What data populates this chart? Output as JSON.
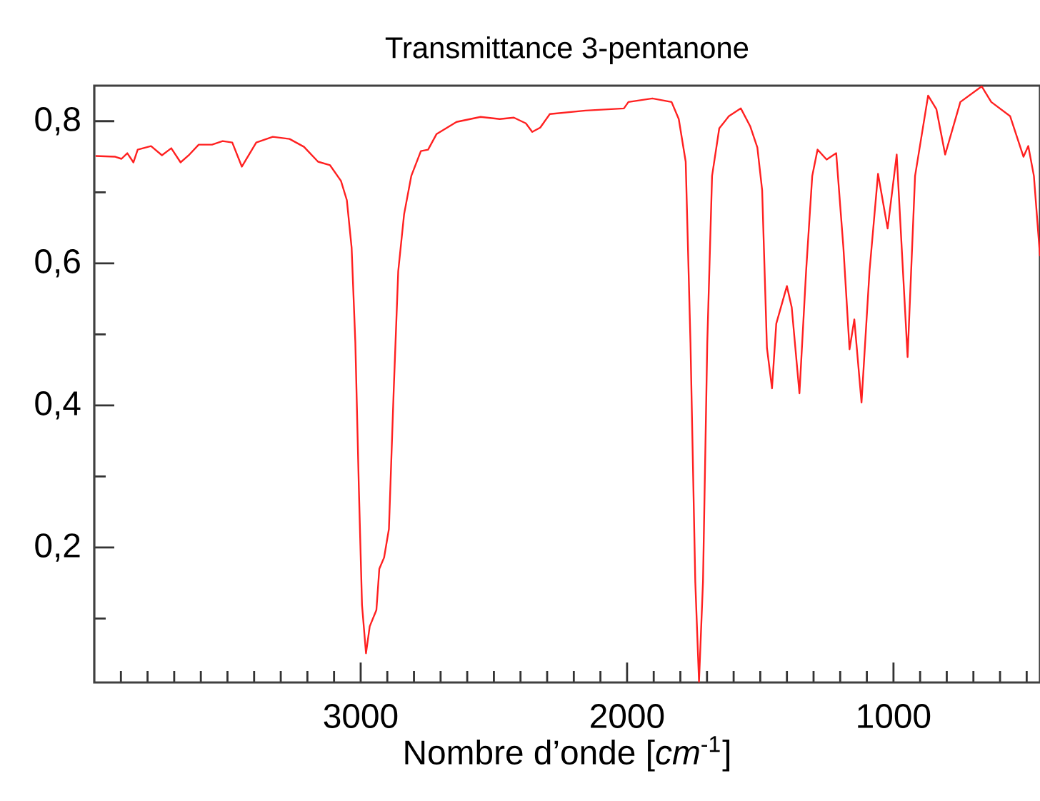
{
  "chart_data": {
    "type": "line",
    "title": "Transmittance 3-pentanone",
    "xlabel": "Nombre d’onde [*cm*$^{-1}$]",
    "xlim": [
      4000,
      450
    ],
    "ylim": [
      0.01,
      0.85
    ],
    "xticks": [
      {
        "value": 3900,
        "label": null
      },
      {
        "value": 3800,
        "label": null
      },
      {
        "value": 3700,
        "label": null
      },
      {
        "value": 3600,
        "label": null
      },
      {
        "value": 3500,
        "label": null
      },
      {
        "value": 3400,
        "label": null
      },
      {
        "value": 3300,
        "label": null
      },
      {
        "value": 3200,
        "label": null
      },
      {
        "value": 3100,
        "label": null
      },
      3000,
      {
        "value": 2900,
        "label": null
      },
      {
        "value": 2800,
        "label": null
      },
      {
        "value": 2700,
        "label": null
      },
      {
        "value": 2600,
        "label": null
      },
      {
        "value": 2500,
        "label": null
      },
      {
        "value": 2400,
        "label": null
      },
      {
        "value": 2300,
        "label": null
      },
      {
        "value": 2200,
        "label": null
      },
      {
        "value": 2100,
        "label": null
      },
      2000,
      {
        "value": 1900,
        "label": null
      },
      {
        "value": 1800,
        "label": null
      },
      {
        "value": 1700,
        "label": null
      },
      {
        "value": 1600,
        "label": null
      },
      {
        "value": 1500,
        "label": null
      },
      {
        "value": 1400,
        "label": null
      },
      {
        "value": 1300,
        "label": null
      },
      {
        "value": 1200,
        "label": null
      },
      {
        "value": 1100,
        "label": null
      },
      1000,
      {
        "value": 900,
        "label": null
      },
      {
        "value": 800,
        "label": null
      },
      {
        "value": 700,
        "label": null
      },
      {
        "value": 600,
        "label": null
      },
      {
        "value": 500,
        "label": null
      }
    ],
    "yticks": [
      {
        "value": 0.1,
        "label": null
      },
      {
        "value": 0.2,
        "label": "0,2"
      },
      {
        "value": 0.3,
        "label": null
      },
      {
        "value": 0.4,
        "label": "0,4"
      },
      {
        "value": 0.5,
        "label": null
      },
      {
        "value": 0.6,
        "label": "0,6"
      },
      {
        "value": 0.7,
        "label": null
      },
      {
        "value": 0.8,
        "label": "0,8"
      }
    ],
    "grid": false,
    "marker": "none",
    "line_style": "solid",
    "series": [
      {
        "color": "#ff2020",
        "x": [
          3995,
          3921,
          3898,
          3876,
          3853,
          3837,
          3787,
          3746,
          3711,
          3676,
          3643,
          3608,
          3558,
          3518,
          3482,
          3446,
          3392,
          3330,
          3267,
          3213,
          3160,
          3115,
          3074,
          3052,
          3034,
          3020,
          3007,
          2995,
          2980,
          2966,
          2941,
          2930,
          2912,
          2894,
          2876,
          2859,
          2837,
          2810,
          2774,
          2747,
          2715,
          2640,
          2550,
          2478,
          2425,
          2380,
          2356,
          2326,
          2290,
          2156,
          2012,
          1995,
          1905,
          1833,
          1806,
          1780,
          1762,
          1744,
          1730,
          1715,
          1699,
          1681,
          1654,
          1618,
          1573,
          1538,
          1511,
          1493,
          1475,
          1456,
          1440,
          1400,
          1382,
          1353,
          1328,
          1305,
          1285,
          1251,
          1215,
          1188,
          1165,
          1147,
          1120,
          1090,
          1058,
          1022,
          988,
          947,
          919,
          870,
          839,
          806,
          749,
          669,
          633,
          562,
          512,
          494,
          473,
          450
        ],
        "values": [
          0.751,
          0.75,
          0.747,
          0.755,
          0.742,
          0.76,
          0.765,
          0.752,
          0.762,
          0.742,
          0.753,
          0.767,
          0.767,
          0.772,
          0.77,
          0.736,
          0.77,
          0.778,
          0.775,
          0.764,
          0.743,
          0.738,
          0.716,
          0.689,
          0.622,
          0.488,
          0.286,
          0.119,
          0.051,
          0.089,
          0.112,
          0.17,
          0.186,
          0.226,
          0.421,
          0.589,
          0.669,
          0.723,
          0.758,
          0.76,
          0.782,
          0.799,
          0.806,
          0.803,
          0.805,
          0.797,
          0.785,
          0.791,
          0.81,
          0.815,
          0.818,
          0.827,
          0.832,
          0.827,
          0.803,
          0.743,
          0.488,
          0.152,
          0.011,
          0.152,
          0.488,
          0.723,
          0.79,
          0.807,
          0.818,
          0.793,
          0.763,
          0.703,
          0.481,
          0.424,
          0.515,
          0.568,
          0.538,
          0.417,
          0.589,
          0.723,
          0.76,
          0.746,
          0.755,
          0.622,
          0.479,
          0.521,
          0.404,
          0.589,
          0.726,
          0.649,
          0.753,
          0.468,
          0.723,
          0.836,
          0.817,
          0.753,
          0.827,
          0.849,
          0.827,
          0.807,
          0.75,
          0.765,
          0.723,
          0.61
        ]
      }
    ]
  }
}
